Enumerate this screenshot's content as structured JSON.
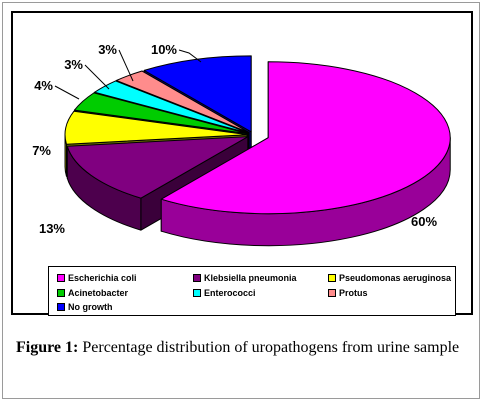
{
  "chart_data": {
    "type": "pie",
    "categories": [
      "Escherichia coli",
      "Klebsiella pneumonia",
      "Pseudomonas aeruginosa",
      "Acinetobacter",
      "Enterococci",
      "Protus",
      "No growth"
    ],
    "values": [
      60,
      13,
      7,
      4,
      3,
      3,
      10
    ],
    "value_labels": [
      "60%",
      "13%",
      "7%",
      "4%",
      "3%",
      "3%",
      "10%"
    ],
    "colors": [
      "#ff00ff",
      "#800080",
      "#ffff00",
      "#00cc00",
      "#00ffff",
      "#ff8c8c",
      "#0000ff"
    ],
    "style": "3d-exploded",
    "legend_placement": "bottom"
  },
  "caption": {
    "label": "Figure 1:",
    "text": "Percentage distribution of uropathogens from urine sample"
  }
}
